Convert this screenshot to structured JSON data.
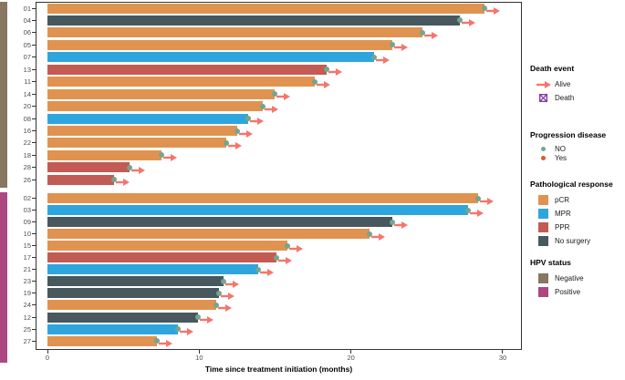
{
  "chart_data": {
    "type": "bar",
    "orientation": "horizontal",
    "xlabel": "Time since treatment initiation (months)",
    "xlim": [
      0,
      30
    ],
    "xticks": [
      "0",
      "10",
      "20",
      "30"
    ],
    "grid": false,
    "legend_position": "right",
    "groups": [
      {
        "hpv_status": "Negative",
        "strip_color": "#877661",
        "patients": [
          {
            "id": "01",
            "months": 28.8,
            "response": "pCR",
            "progression": "NO",
            "death": "Alive"
          },
          {
            "id": "04",
            "months": 27.2,
            "response": "No surgery",
            "progression": "NO",
            "death": "Alive"
          },
          {
            "id": "06",
            "months": 24.7,
            "response": "pCR",
            "progression": "NO",
            "death": "Alive"
          },
          {
            "id": "05",
            "months": 22.7,
            "response": "pCR",
            "progression": "NO",
            "death": "Alive"
          },
          {
            "id": "07",
            "months": 21.5,
            "response": "MPR",
            "progression": "NO",
            "death": "Alive"
          },
          {
            "id": "13",
            "months": 18.4,
            "response": "PPR",
            "progression": "NO",
            "death": "Alive"
          },
          {
            "id": "11",
            "months": 17.6,
            "response": "pCR",
            "progression": "NO",
            "death": "Alive"
          },
          {
            "id": "14",
            "months": 15.0,
            "response": "pCR",
            "progression": "NO",
            "death": "Alive"
          },
          {
            "id": "20",
            "months": 14.2,
            "response": "pCR",
            "progression": "NO",
            "death": "Alive"
          },
          {
            "id": "08",
            "months": 13.2,
            "response": "MPR",
            "progression": "NO",
            "death": "Alive"
          },
          {
            "id": "16",
            "months": 12.5,
            "response": "pCR",
            "progression": "NO",
            "death": "Alive"
          },
          {
            "id": "22",
            "months": 11.8,
            "response": "pCR",
            "progression": "NO",
            "death": "Alive"
          },
          {
            "id": "18",
            "months": 7.5,
            "response": "pCR",
            "progression": "NO",
            "death": "Alive"
          },
          {
            "id": "28",
            "months": 5.4,
            "response": "PPR",
            "progression": "NO",
            "death": "Alive"
          },
          {
            "id": "26",
            "months": 4.4,
            "response": "PPR",
            "progression": "NO",
            "death": "Alive"
          }
        ]
      },
      {
        "hpv_status": "Positive",
        "strip_color": "#AD4780",
        "patients": [
          {
            "id": "02",
            "months": 28.4,
            "response": "pCR",
            "progression": "NO",
            "death": "Alive"
          },
          {
            "id": "03",
            "months": 27.7,
            "response": "MPR",
            "progression": "NO",
            "death": "Alive"
          },
          {
            "id": "09",
            "months": 22.7,
            "response": "No surgery",
            "progression": "NO",
            "death": "Alive"
          },
          {
            "id": "10",
            "months": 21.2,
            "response": "pCR",
            "progression": "NO",
            "death": "Alive"
          },
          {
            "id": "15",
            "months": 15.8,
            "response": "pCR",
            "progression": "NO",
            "death": "Alive"
          },
          {
            "id": "17",
            "months": 15.1,
            "response": "PPR",
            "progression": "NO",
            "death": "Alive"
          },
          {
            "id": "21",
            "months": 13.9,
            "response": "MPR",
            "progression": "NO",
            "death": "Alive"
          },
          {
            "id": "23",
            "months": 11.6,
            "response": "No surgery",
            "progression": "NO",
            "death": "Alive"
          },
          {
            "id": "19",
            "months": 11.3,
            "response": "No surgery",
            "progression": "NO",
            "death": "Alive"
          },
          {
            "id": "24",
            "months": 11.1,
            "response": "pCR",
            "progression": "NO",
            "death": "Alive"
          },
          {
            "id": "12",
            "months": 9.9,
            "response": "No surgery",
            "progression": "NO",
            "death": "Alive"
          },
          {
            "id": "25",
            "months": 8.6,
            "response": "MPR",
            "progression": "NO",
            "death": "Alive"
          },
          {
            "id": "27",
            "months": 7.2,
            "response": "pCR",
            "progression": "NO",
            "death": "Alive"
          }
        ]
      }
    ],
    "legend_sections": [
      {
        "key": "death",
        "title": "Death event",
        "items": [
          {
            "label": "Alive",
            "marker": "arrow",
            "color": "#F5756C"
          },
          {
            "label": "Death",
            "marker": "boxed_x",
            "color": "#7E2F9B"
          }
        ]
      },
      {
        "key": "progression",
        "title": "Progression disease",
        "items": [
          {
            "label": "NO",
            "marker": "dot",
            "color": "#73A58F"
          },
          {
            "label": "Yes",
            "marker": "dot",
            "color": "#E2572B"
          }
        ]
      },
      {
        "key": "response",
        "title": "Pathological response",
        "items": [
          {
            "label": "pCR",
            "marker": "square",
            "color": "#E09350"
          },
          {
            "label": "MPR",
            "marker": "square",
            "color": "#2EA6DD"
          },
          {
            "label": "PPR",
            "marker": "square",
            "color": "#C25B54"
          },
          {
            "label": "No surgery",
            "marker": "square",
            "color": "#47585F"
          }
        ]
      },
      {
        "key": "hpv",
        "title": "HPV status",
        "items": [
          {
            "label": "Negative",
            "marker": "square",
            "color": "#877661"
          },
          {
            "label": "Positive",
            "marker": "square",
            "color": "#AD4780"
          }
        ]
      }
    ]
  }
}
